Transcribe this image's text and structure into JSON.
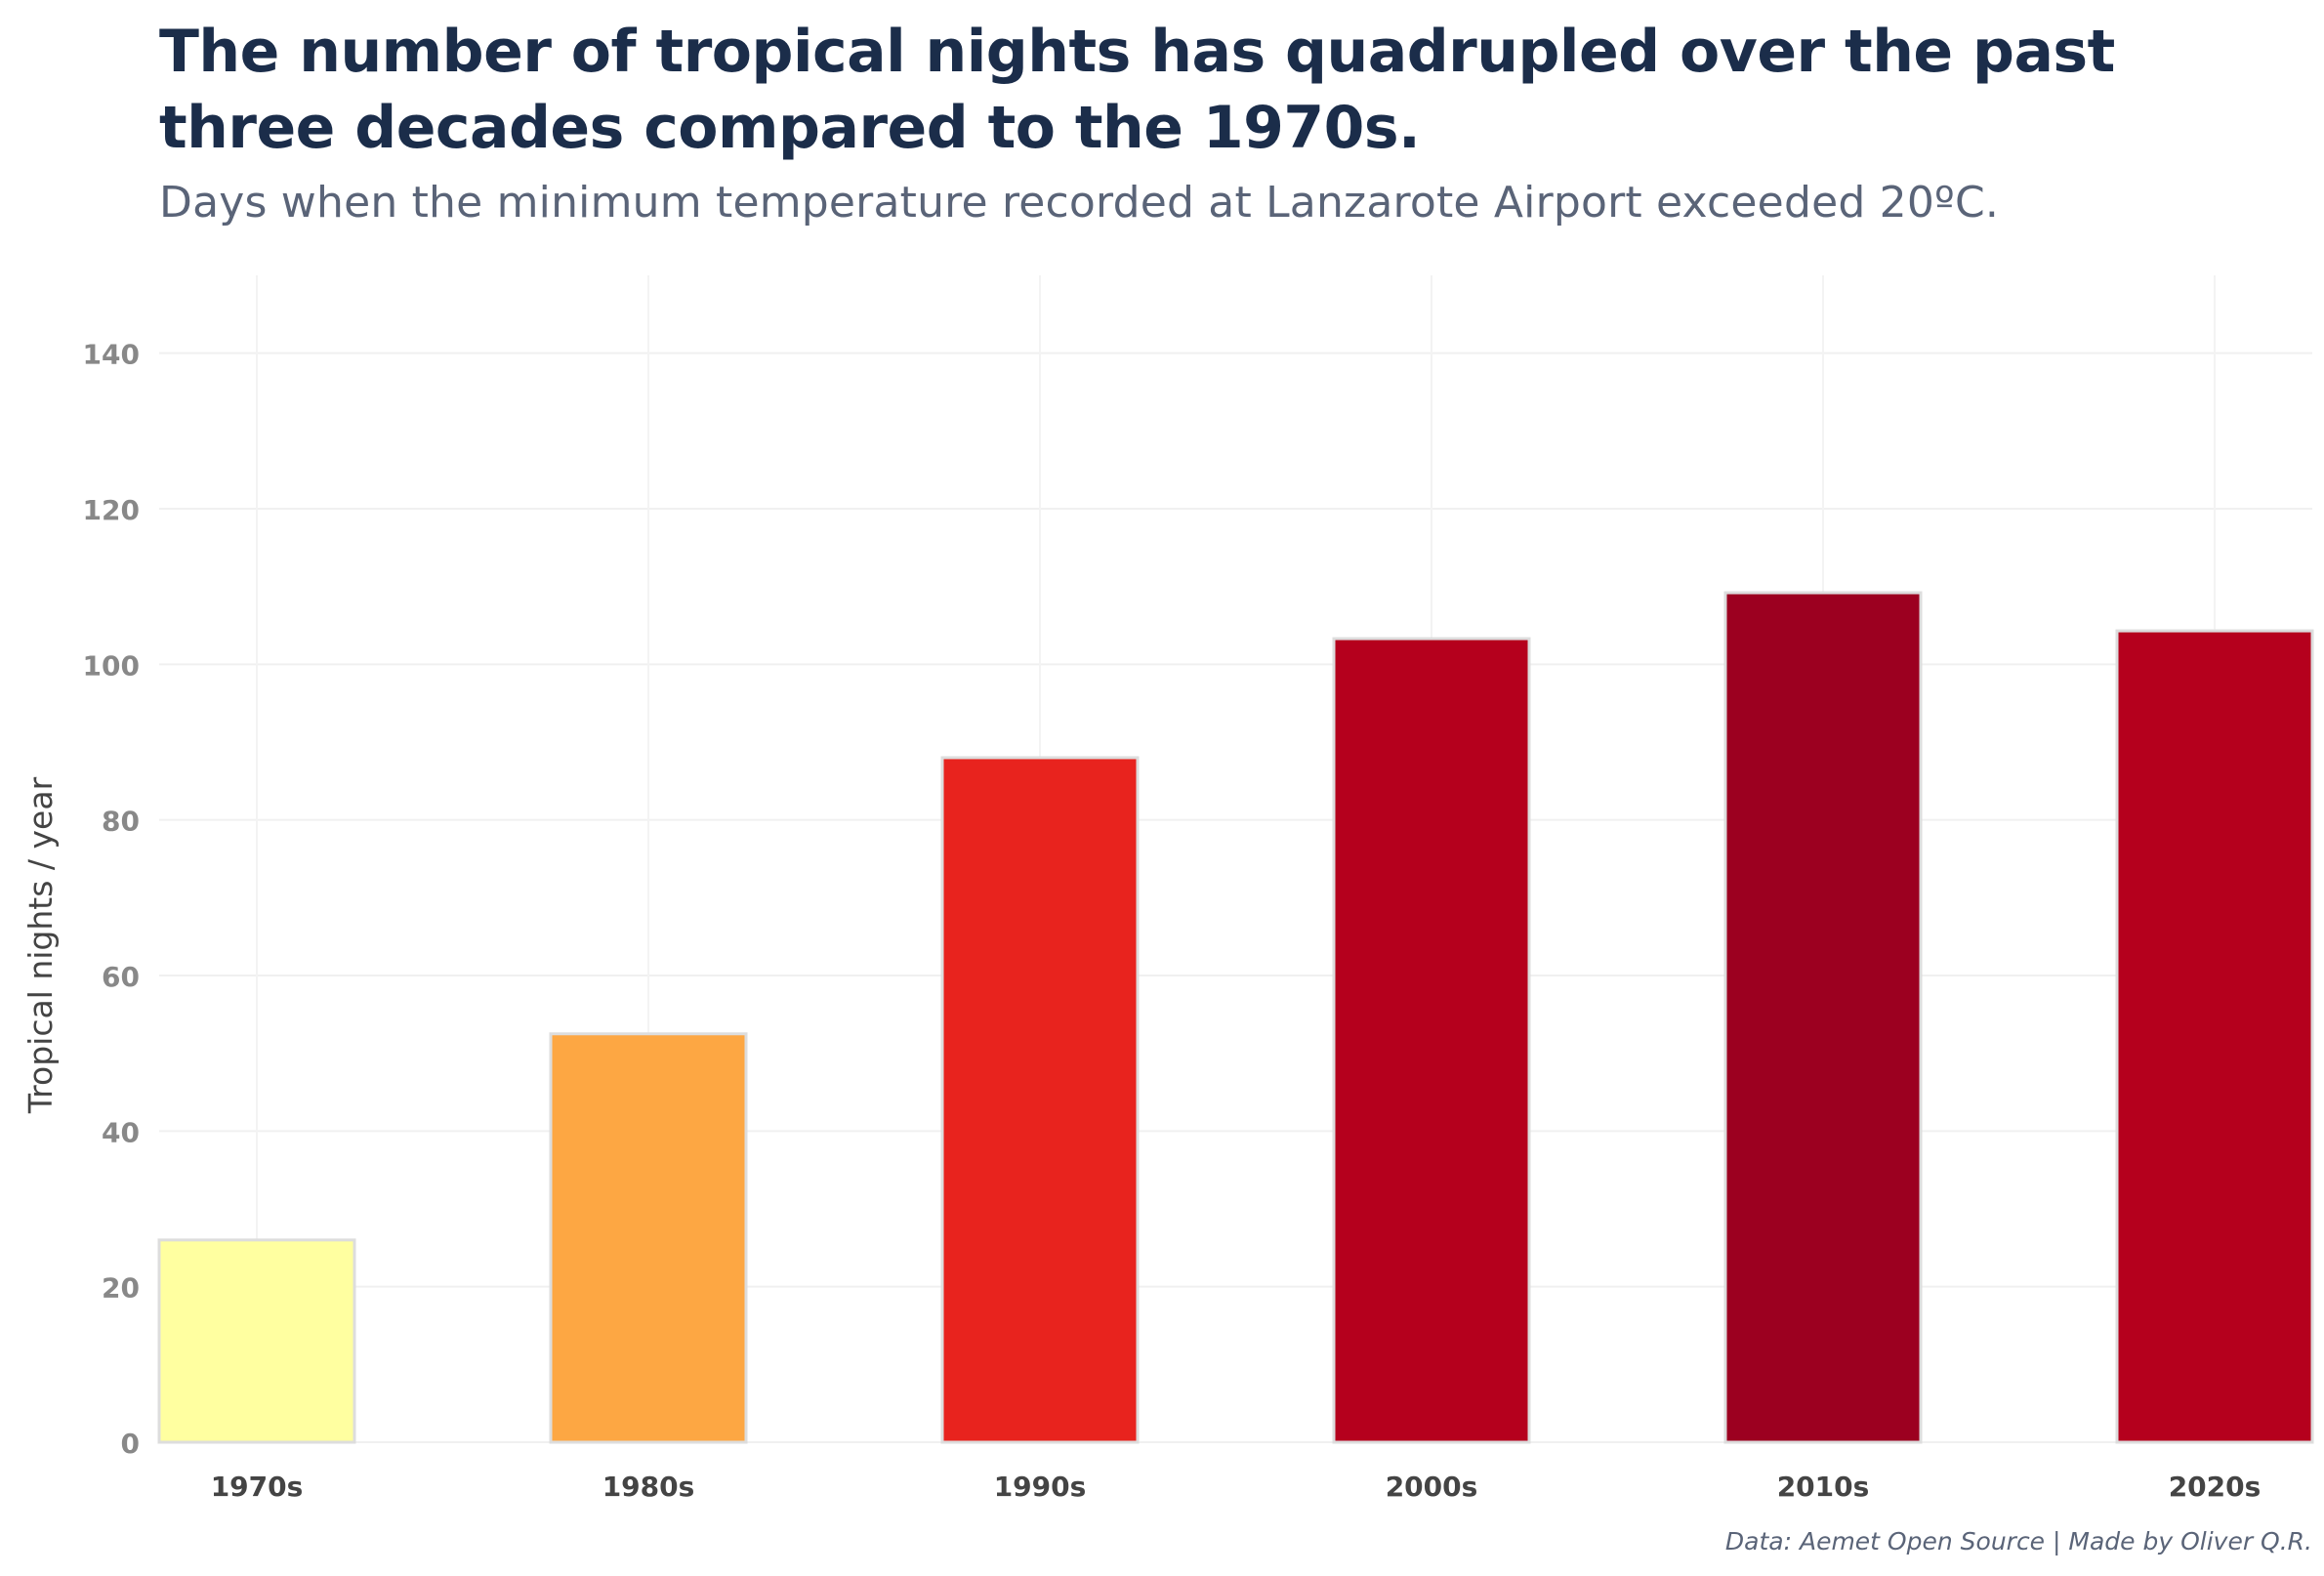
{
  "chart_data": {
    "type": "bar",
    "title": "The number of tropical nights has quadrupled over the past three decades compared to the 1970s.",
    "subtitle": "Days when the minimum temperature recorded at Lanzarote Airport exceeded 20ºC.",
    "ylabel": "Tropical nights / year",
    "xlabel": "",
    "categories": [
      "1970s",
      "1980s",
      "1990s",
      "2000s",
      "2010s",
      "2020s"
    ],
    "values": [
      26,
      52.5,
      88,
      103.3,
      109.2,
      104.3
    ],
    "colors": [
      "#ffffa0",
      "#fda743",
      "#e8231e",
      "#b5001d",
      "#9c0020",
      "#b5001d"
    ],
    "ylim": [
      0,
      150
    ],
    "yticks": [
      0,
      20,
      40,
      60,
      80,
      100,
      120,
      140
    ],
    "grid": true,
    "legend": "none",
    "caption": "Data: Aemet Open Source | Made by Oliver Q.R."
  }
}
